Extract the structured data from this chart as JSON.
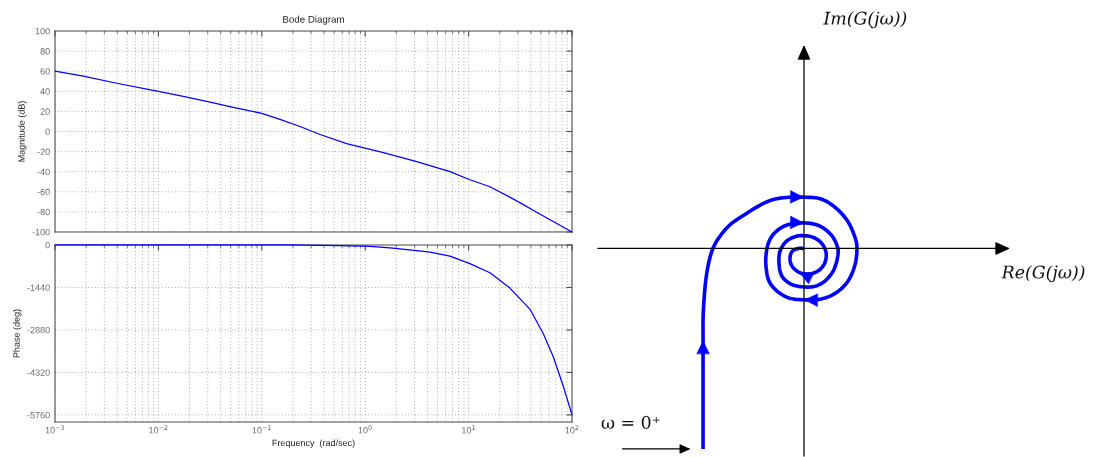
{
  "chart_data": [
    {
      "type": "line",
      "title": "Bode Diagram",
      "ylabel": "Magnitude (dB)",
      "log": "x",
      "xlim": [
        0.001,
        100
      ],
      "ylim": [
        -100,
        100
      ],
      "xticks": [
        {
          "value": 0.001,
          "label": null
        },
        {
          "value": 0.01,
          "label": null
        },
        {
          "value": 0.1,
          "label": null
        },
        {
          "value": 1,
          "label": null
        },
        {
          "value": 10,
          "label": null
        },
        {
          "value": 100,
          "label": null
        }
      ],
      "yticks": [
        -100,
        -80,
        -60,
        -40,
        -20,
        0,
        20,
        40,
        60,
        80,
        100
      ],
      "grid": true,
      "tick_labels": "y",
      "series": [
        {
          "color": "#0000ff",
          "x": [
            0.001,
            0.00188,
            0.00395,
            0.01,
            0.0174,
            0.0293,
            0.053,
            0.1,
            0.15,
            0.234,
            0.366,
            0.662,
            1.5,
            3.15,
            6.61,
            10.3,
            16.1,
            29.2,
            52.8,
            100
          ],
          "values": [
            60,
            55,
            48,
            40,
            35,
            30,
            24,
            18,
            12,
            5,
            -3,
            -12,
            -21,
            -30,
            -40,
            -48,
            -55,
            -69,
            -84,
            -100
          ]
        }
      ]
    },
    {
      "type": "line",
      "xlabel": "Frequency  (rad/sec)",
      "ylabel": "Phase (deg)",
      "log": "x",
      "xlim": [
        0.001,
        100
      ],
      "ylim": [
        -6000,
        0
      ],
      "xticks": [
        {
          "value": 0.001,
          "label": "10$^{−3}$"
        },
        {
          "value": 0.01,
          "label": "10$^{−2}$"
        },
        {
          "value": 0.1,
          "label": "10$^{−1}$"
        },
        {
          "value": 1,
          "label": "10$^{0}$"
        },
        {
          "value": 10,
          "label": "10$^{1}$"
        },
        {
          "value": 100,
          "label": "10$^{2}$"
        }
      ],
      "yticks": [
        -5760,
        -4320,
        -2880,
        -1440,
        0
      ],
      "grid": true,
      "series": [
        {
          "color": "#0000ff",
          "x": [
            0.001,
            0.01,
            0.1,
            0.1875,
            0.57,
            1.11,
            1.74,
            3.15,
            4.24,
            6.61,
            10.3,
            16.1,
            25.1,
            39.3,
            52.8,
            65.9,
            82.4,
            100
          ],
          "values": [
            0,
            0,
            0,
            0,
            -20,
            -50,
            -100,
            -190,
            -240,
            -380,
            -630,
            -940,
            -1460,
            -2180,
            -3010,
            -3790,
            -4790,
            -5760
          ]
        }
      ]
    },
    {
      "type": "other",
      "xlabel": "Re(G(jω))",
      "ylabel": "Im(G(jω))",
      "annotations": [
        "ω = 0⁺"
      ]
    }
  ]
}
